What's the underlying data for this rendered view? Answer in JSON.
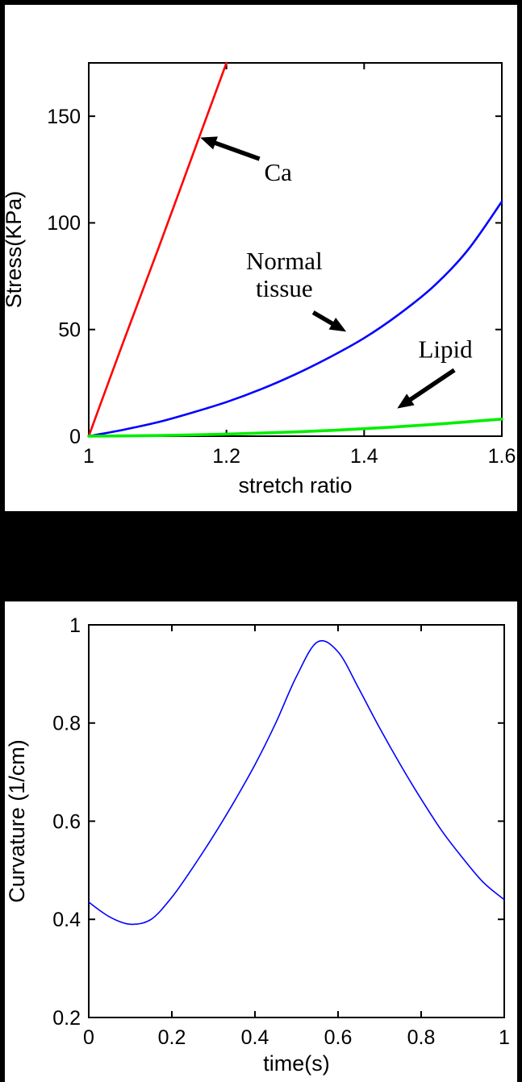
{
  "page": {
    "background": "#000000",
    "panel_background": "#ffffff"
  },
  "chart_data": [
    {
      "type": "line",
      "title": "",
      "xlabel": "stretch ratio",
      "ylabel": "Stress(KPa)",
      "xlim": [
        1,
        1.6
      ],
      "ylim": [
        0,
        175
      ],
      "xticks": [
        1,
        1.2,
        1.4,
        1.6
      ],
      "xtick_labels": [
        "1",
        "1.2",
        "1.4",
        "1.6"
      ],
      "yticks": [
        0,
        50,
        100,
        150
      ],
      "ytick_labels": [
        "0",
        "50",
        "100",
        "150"
      ],
      "grid": false,
      "legend_position": "none",
      "series": [
        {
          "name": "Ca",
          "color": "#ff0000",
          "width": 2.6,
          "x": [
            1.0,
            1.05,
            1.1,
            1.15,
            1.2
          ],
          "y": [
            0,
            44,
            87,
            131,
            175
          ]
        },
        {
          "name": "Normal tissue",
          "color": "#0000ff",
          "width": 2.6,
          "x": [
            1.0,
            1.05,
            1.1,
            1.15,
            1.2,
            1.25,
            1.3,
            1.35,
            1.4,
            1.45,
            1.5,
            1.55,
            1.6
          ],
          "y": [
            0,
            3,
            6.5,
            11,
            16,
            22,
            29,
            37,
            46,
            57,
            70,
            87,
            110
          ]
        },
        {
          "name": "Lipid",
          "color": "#00ee00",
          "width": 3.6,
          "x": [
            1.0,
            1.1,
            1.2,
            1.3,
            1.4,
            1.5,
            1.6
          ],
          "y": [
            0,
            0.3,
            1,
            2,
            3.5,
            5.5,
            8
          ]
        }
      ],
      "annotations": [
        {
          "text": [
            "Ca"
          ],
          "x": 1.275,
          "y": 124,
          "arrow": {
            "from": [
              1.248,
              130
            ],
            "to": [
              1.162,
              140
            ]
          }
        },
        {
          "text": [
            "Normal",
            "tissue"
          ],
          "x": 1.284,
          "y": 76,
          "arrow": {
            "from": [
              1.326,
              58
            ],
            "to": [
              1.374,
              49
            ]
          }
        },
        {
          "text": [
            "Lipid"
          ],
          "x": 1.518,
          "y": 41,
          "arrow": {
            "from": [
              1.531,
              31
            ],
            "to": [
              1.448,
              13
            ]
          }
        }
      ]
    },
    {
      "type": "line",
      "title": "",
      "xlabel": "time(s)",
      "ylabel": "Curvature (1/cm)",
      "xlim": [
        0,
        1
      ],
      "ylim": [
        0.2,
        1.0
      ],
      "xticks": [
        0,
        0.2,
        0.4,
        0.6,
        0.8,
        1
      ],
      "xtick_labels": [
        "0",
        "0.2",
        "0.4",
        "0.6",
        "0.8",
        "1"
      ],
      "yticks": [
        0.2,
        0.4,
        0.6,
        0.8,
        1
      ],
      "ytick_labels": [
        "0.2",
        "0.4",
        "0.6",
        "0.8",
        "1"
      ],
      "grid": false,
      "legend_position": "none",
      "series": [
        {
          "name": "Curvature",
          "color": "#0000ff",
          "width": 1.6,
          "x": [
            0,
            0.05,
            0.1,
            0.15,
            0.2,
            0.25,
            0.3,
            0.35,
            0.4,
            0.45,
            0.5,
            0.55,
            0.6,
            0.65,
            0.7,
            0.75,
            0.8,
            0.85,
            0.9,
            0.95,
            1.0
          ],
          "y": [
            0.435,
            0.405,
            0.39,
            0.4,
            0.445,
            0.505,
            0.57,
            0.64,
            0.715,
            0.8,
            0.895,
            0.965,
            0.945,
            0.87,
            0.79,
            0.715,
            0.645,
            0.58,
            0.525,
            0.475,
            0.44
          ]
        }
      ],
      "annotations": []
    }
  ]
}
